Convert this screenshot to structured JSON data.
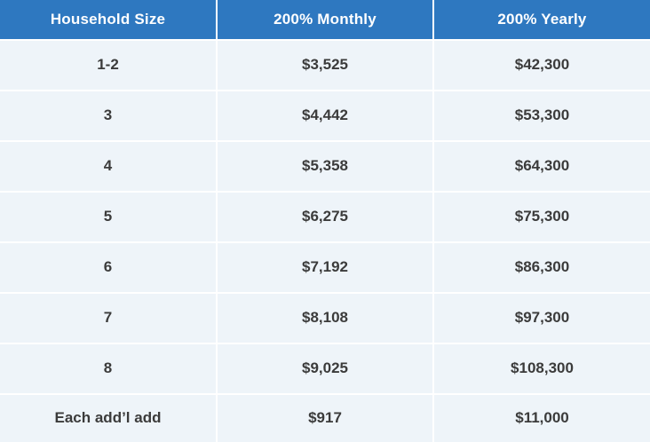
{
  "colors": {
    "header_background": "#2e78c0",
    "header_text": "#ffffff",
    "row_background": "#eef4f9",
    "cell_text": "#3b3b3b",
    "separator": "#ffffff"
  },
  "chart_data": {
    "type": "table",
    "columns": [
      "Household Size",
      "200% Monthly",
      "200% Yearly"
    ],
    "rows": [
      [
        "1-2",
        "$3,525",
        "$42,300"
      ],
      [
        "3",
        "$4,442",
        "$53,300"
      ],
      [
        "4",
        "$5,358",
        "$64,300"
      ],
      [
        "5",
        "$6,275",
        "$75,300"
      ],
      [
        "6",
        "$7,192",
        "$86,300"
      ],
      [
        "7",
        "$8,108",
        "$97,300"
      ],
      [
        "8",
        "$9,025",
        "$108,300"
      ],
      [
        "Each add’l add",
        "$917",
        "$11,000"
      ]
    ]
  }
}
